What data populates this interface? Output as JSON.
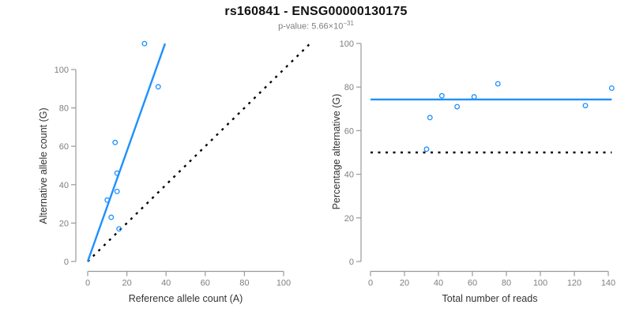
{
  "header": {
    "title": "rs160841 - ENSG00000130175",
    "p_value_base": "p-value: 5.66×10",
    "p_value_exponent": "−31"
  },
  "colors": {
    "point_blue": "#1E90FF",
    "line_blue": "#1E90FF",
    "dotted_line_black": "#000000",
    "axis_line_gray": "#999999",
    "tick_label_gray": "#7F7F7F",
    "axis_title_color": "#333333",
    "title_color": "#111111",
    "subtitle_color": "#7F7F7F"
  },
  "chart_data": [
    {
      "type": "scatter",
      "panel": "left",
      "xlabel": "Reference allele count (A)",
      "ylabel": "Alternative allele count (G)",
      "xticks": [
        0,
        20,
        40,
        60,
        80,
        100
      ],
      "yticks": [
        0,
        20,
        40,
        60,
        80,
        100
      ],
      "xlim": [
        0,
        115
      ],
      "ylim": [
        0,
        115
      ],
      "grid": false,
      "legend": "none",
      "points": [
        [
          29,
          113.5
        ],
        [
          36,
          91
        ],
        [
          14,
          62
        ],
        [
          15,
          46
        ],
        [
          15,
          36.5
        ],
        [
          10,
          32
        ],
        [
          12,
          23
        ],
        [
          16,
          17
        ]
      ],
      "lines": [
        {
          "name": "identity-line",
          "x1": 0,
          "y1": 0,
          "x2": 113,
          "y2": 113,
          "style": "dotted",
          "color": "black"
        },
        {
          "name": "regression-line",
          "x1": 0,
          "y1": 0,
          "x2": 39.5,
          "y2": 113.5,
          "style": "solid",
          "color": "blue"
        }
      ]
    },
    {
      "type": "scatter",
      "panel": "right",
      "xlabel": "Total number of reads",
      "ylabel": "Percentage alternative (G)",
      "xticks": [
        0,
        20,
        40,
        60,
        80,
        100,
        120,
        140
      ],
      "yticks": [
        0,
        20,
        40,
        60,
        80,
        100
      ],
      "xlim": [
        0,
        145
      ],
      "ylim": [
        0,
        100
      ],
      "grid": false,
      "legend": "none",
      "points": [
        [
          33,
          51.5
        ],
        [
          35,
          66
        ],
        [
          42,
          76
        ],
        [
          51,
          71
        ],
        [
          61,
          75.5
        ],
        [
          75,
          81.5
        ],
        [
          126.5,
          71.5
        ],
        [
          142,
          79.5
        ]
      ],
      "lines": [
        {
          "name": "null-line",
          "x1": 0,
          "y1": 50,
          "x2": 142,
          "y2": 50,
          "style": "dotted",
          "color": "black"
        },
        {
          "name": "mean-line",
          "x1": 0,
          "y1": 74.3,
          "x2": 142,
          "y2": 74.3,
          "style": "solid",
          "color": "blue"
        }
      ]
    }
  ]
}
